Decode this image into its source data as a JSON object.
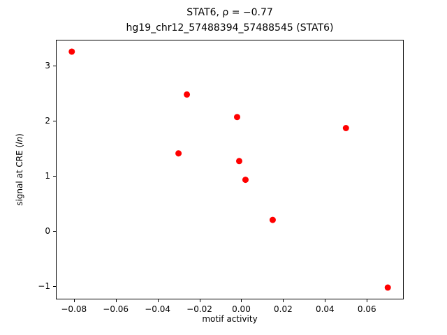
{
  "chart_data": {
    "type": "scatter",
    "title": "STAT6, ρ = −0.77",
    "subtitle": "hg19_chr12_57488394_57488545 (STAT6)",
    "xlabel": "motif activity",
    "ylabel_prefix": "signal at CRE (",
    "ylabel_italic": "ln",
    "ylabel_suffix": ")",
    "marker_color": "#ff0000",
    "marker_radius_px": 4.5,
    "xlim": [
      -0.0886,
      0.0776
    ],
    "ylim": [
      -1.245,
      3.475
    ],
    "xticks": [
      -0.08,
      -0.06,
      -0.04,
      -0.02,
      0.0,
      0.02,
      0.04,
      0.06
    ],
    "yticks": [
      -1,
      0,
      1,
      2,
      3
    ],
    "grid": false,
    "legend": "none",
    "points": [
      {
        "x": -0.081,
        "y": 3.26
      },
      {
        "x": -0.03,
        "y": 1.41
      },
      {
        "x": -0.026,
        "y": 2.48
      },
      {
        "x": -0.002,
        "y": 2.07
      },
      {
        "x": -0.001,
        "y": 1.27
      },
      {
        "x": 0.002,
        "y": 0.93
      },
      {
        "x": 0.015,
        "y": 0.2
      },
      {
        "x": 0.05,
        "y": 1.87
      },
      {
        "x": 0.07,
        "y": -1.03
      }
    ]
  }
}
